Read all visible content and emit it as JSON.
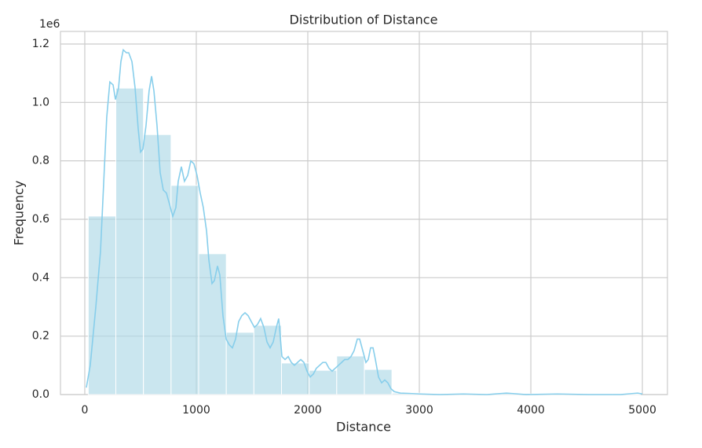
{
  "chart_data": {
    "type": "histogram",
    "title": "Distribution of Distance",
    "x_label": "Distance",
    "y_label": "Frequency",
    "y_offset_label": "1e6",
    "bins": [
      31,
      278.6,
      526.2,
      773.8,
      1021.4,
      1269,
      1516.6,
      1764.2,
      2011.8,
      2259.4,
      2507,
      2754.6,
      3002.2,
      3249.8,
      3497.4,
      3745,
      3992.6,
      4240.2,
      4487.8,
      4735.4,
      4983
    ],
    "counts": [
      611000,
      1049000,
      890000,
      716000,
      482000,
      213000,
      237000,
      108000,
      83000,
      132000,
      86000,
      5000,
      3000,
      2000,
      1000,
      4000,
      2000,
      2000,
      1000,
      3000
    ],
    "color": "#add8e6",
    "kde": {
      "color": "#87ceeb",
      "x": [
        14,
        49,
        99,
        141,
        197,
        225,
        254,
        275,
        303,
        324,
        345,
        373,
        394,
        423,
        451,
        479,
        500,
        521,
        549,
        577,
        599,
        620,
        648,
        676,
        704,
        732,
        761,
        789,
        817,
        838,
        866,
        894,
        923,
        951,
        979,
        1007,
        1035,
        1063,
        1092,
        1113,
        1141,
        1162,
        1190,
        1211,
        1239,
        1268,
        1296,
        1324,
        1352,
        1380,
        1408,
        1437,
        1465,
        1493,
        1521,
        1549,
        1577,
        1606,
        1634,
        1662,
        1690,
        1718,
        1739,
        1768,
        1796,
        1824,
        1852,
        1880,
        1908,
        1937,
        1965,
        1993,
        2021,
        2049,
        2077,
        2106,
        2134,
        2162,
        2190,
        2218,
        2246,
        2275,
        2303,
        2331,
        2359,
        2387,
        2415,
        2444,
        2465,
        2493,
        2521,
        2542,
        2563,
        2585,
        2606,
        2634,
        2662,
        2690,
        2718,
        2746,
        2775,
        2831,
        2901,
        3007,
        3183,
        3394,
        3606,
        3782,
        3958,
        4239,
        4521,
        4803,
        4958,
        5000
      ],
      "values": [
        24000,
        100000,
        300000,
        490000,
        950000,
        1070000,
        1060000,
        1010000,
        1050000,
        1140000,
        1180000,
        1170000,
        1170000,
        1140000,
        1050000,
        910000,
        830000,
        840000,
        920000,
        1040000,
        1090000,
        1040000,
        920000,
        760000,
        700000,
        690000,
        650000,
        610000,
        640000,
        730000,
        780000,
        730000,
        750000,
        800000,
        790000,
        750000,
        690000,
        640000,
        560000,
        460000,
        380000,
        390000,
        440000,
        410000,
        270000,
        190000,
        170000,
        160000,
        190000,
        250000,
        270000,
        280000,
        270000,
        250000,
        230000,
        240000,
        260000,
        230000,
        180000,
        160000,
        180000,
        230000,
        260000,
        130000,
        120000,
        130000,
        110000,
        100000,
        110000,
        120000,
        110000,
        80000,
        60000,
        70000,
        90000,
        100000,
        110000,
        110000,
        90000,
        80000,
        90000,
        100000,
        110000,
        120000,
        120000,
        130000,
        150000,
        190000,
        190000,
        150000,
        110000,
        120000,
        160000,
        160000,
        120000,
        60000,
        40000,
        50000,
        40000,
        20000,
        10000,
        5000,
        4000,
        2000,
        0,
        2000,
        0,
        5000,
        0,
        2000,
        0,
        0,
        5000,
        2000
      ]
    },
    "xlim": [
      -218,
      5225
    ],
    "ylim": [
      0,
      1243000
    ],
    "xticks": [
      0,
      1000,
      2000,
      3000,
      4000,
      5000
    ],
    "yticks": [
      {
        "value": 0,
        "label": "0.0"
      },
      {
        "value": 200000,
        "label": "0.2"
      },
      {
        "value": 400000,
        "label": "0.4"
      },
      {
        "value": 600000,
        "label": "0.6"
      },
      {
        "value": 800000,
        "label": "0.8"
      },
      {
        "value": 1000000,
        "label": "1.0"
      },
      {
        "value": 1200000,
        "label": "1.2"
      }
    ],
    "grid": true
  }
}
